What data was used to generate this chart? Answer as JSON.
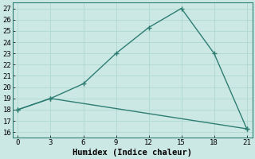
{
  "line1_x": [
    0,
    3,
    6,
    9,
    12,
    15,
    18,
    21
  ],
  "line1_y": [
    18,
    19,
    20.3,
    23,
    25.3,
    27,
    23,
    16.3
  ],
  "line2_x": [
    0,
    3,
    21
  ],
  "line2_y": [
    18,
    19,
    16.3
  ],
  "line_color": "#2d7d72",
  "bg_color": "#cce8e4",
  "grid_color": "#b0d8d2",
  "xlabel": "Humidex (Indice chaleur)",
  "xlim": [
    -0.5,
    21.5
  ],
  "ylim": [
    15.5,
    27.5
  ],
  "xticks": [
    0,
    3,
    6,
    9,
    12,
    15,
    18,
    21
  ],
  "yticks": [
    16,
    17,
    18,
    19,
    20,
    21,
    22,
    23,
    24,
    25,
    26,
    27
  ],
  "marker": "+",
  "markersize": 5,
  "linewidth": 1.0,
  "xlabel_fontsize": 7.5,
  "tick_fontsize": 6.5,
  "font_family": "monospace"
}
